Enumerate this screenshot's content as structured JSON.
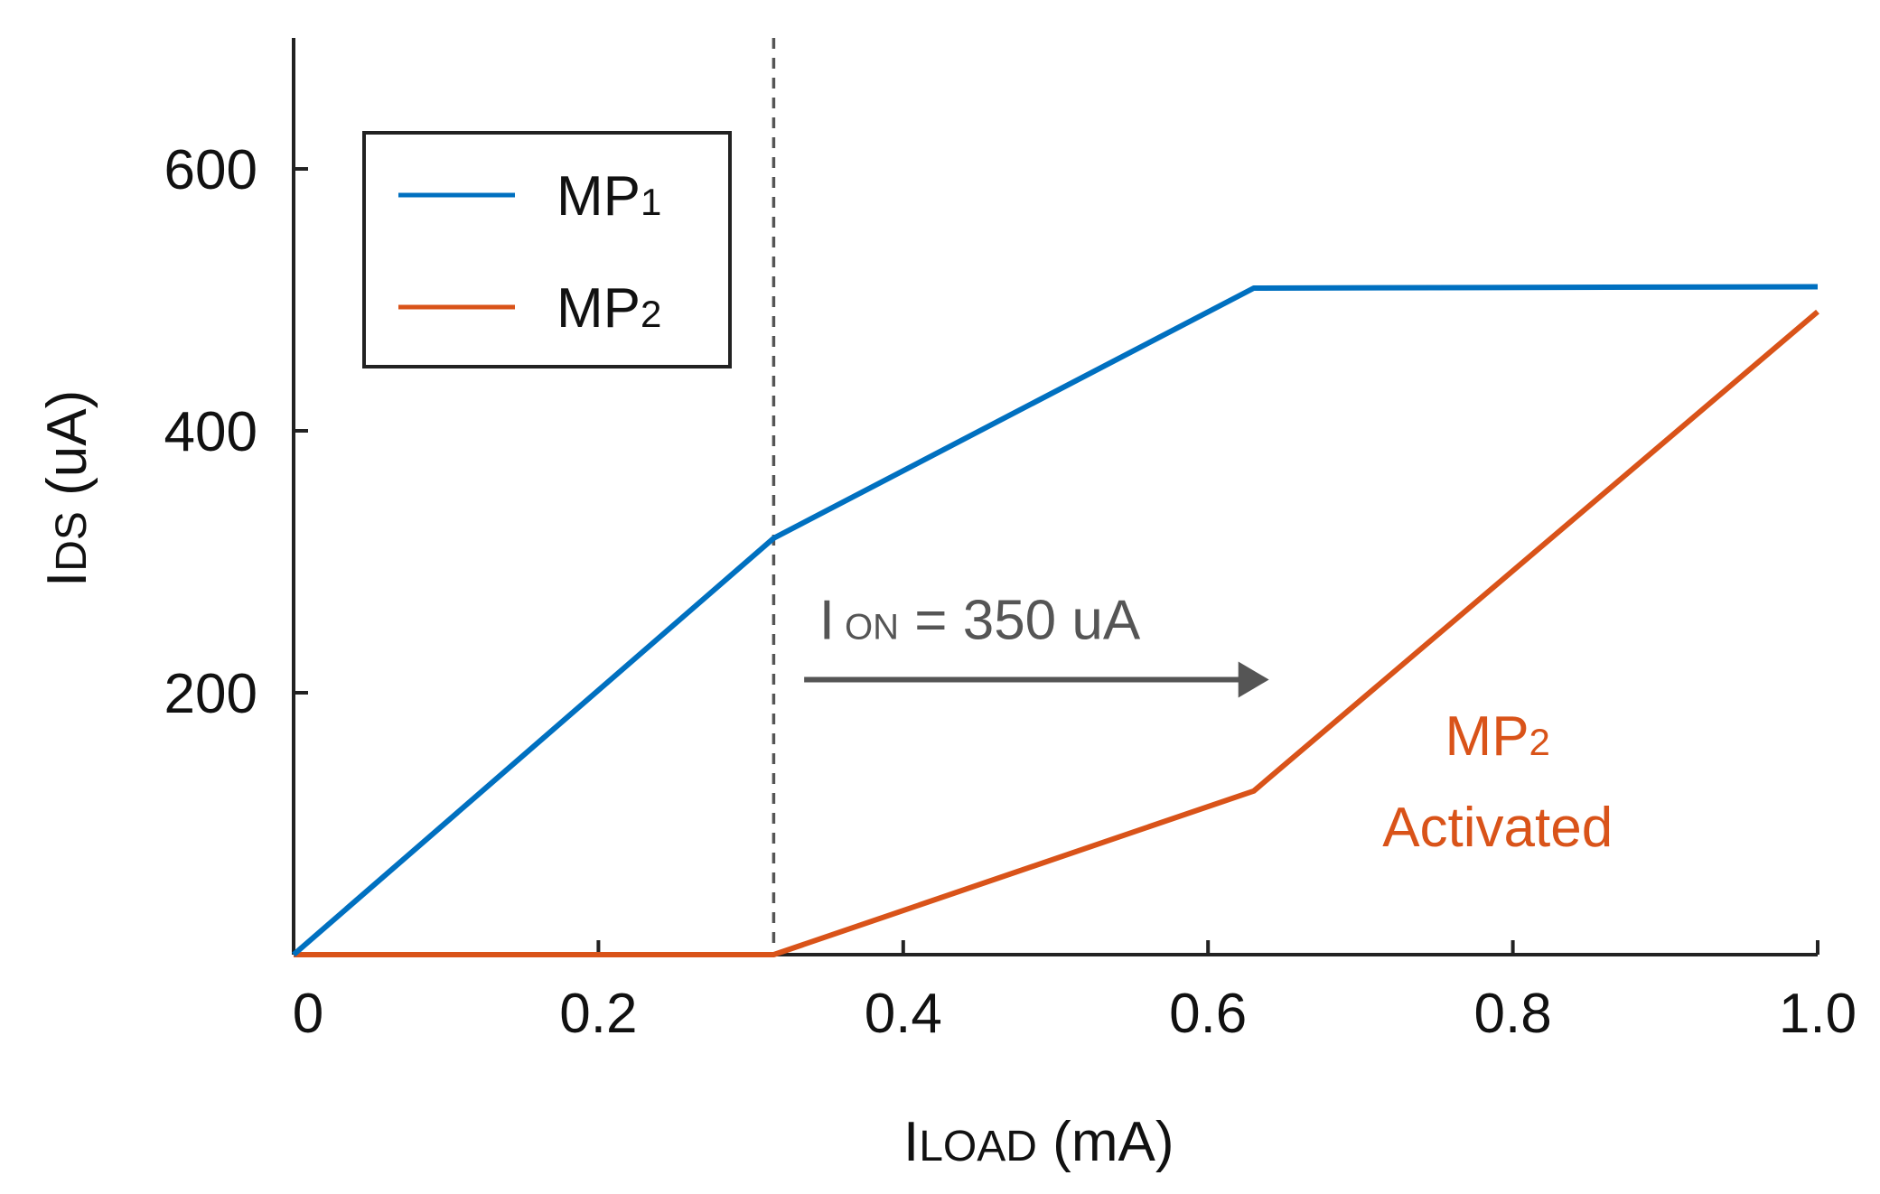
{
  "chart_data": {
    "type": "line",
    "title": "",
    "xlabel": {
      "main": "I",
      "sub": "LOAD",
      "unit": " (mA)"
    },
    "ylabel": {
      "main": "I",
      "sub": "DS",
      "unit": " (uA)"
    },
    "xlim": [
      0,
      1.0
    ],
    "ylim": [
      0,
      700
    ],
    "xticks": [
      0,
      0.2,
      0.4,
      0.6,
      0.8,
      1.0
    ],
    "xtick_labels": [
      "0",
      "0.2",
      "0.4",
      "0.6",
      "0.8",
      "1.0"
    ],
    "yticks": [
      200,
      400,
      600
    ],
    "ytick_labels": [
      "200",
      "400",
      "600"
    ],
    "grid": false,
    "legend_position": "top-left",
    "series": [
      {
        "name": "MP1",
        "name_main": "MP",
        "name_sub": "1",
        "color": "#0070C0",
        "x": [
          0,
          0.315,
          0.63,
          1.0
        ],
        "y": [
          0,
          318,
          509,
          510
        ]
      },
      {
        "name": "MP2",
        "name_main": "MP",
        "name_sub": "2",
        "color": "#D95319",
        "x": [
          0,
          0.315,
          0.63,
          1.0
        ],
        "y": [
          0,
          0,
          125,
          491
        ]
      }
    ],
    "threshold_line": {
      "x": 0.315,
      "style": "dashed",
      "color": "#555555"
    },
    "annotations": [
      {
        "id": "ion",
        "text_main": "I",
        "text_sub": " ON",
        "text_rest": " = 350 uA",
        "color": "#555555",
        "x": 0.33,
        "y": 255
      },
      {
        "id": "mp2-activated",
        "line1_main": "MP",
        "line1_sub": "2",
        "line2": "Activated",
        "color": "#D95319",
        "x": 0.79,
        "y": 140
      }
    ],
    "arrow": {
      "x_from": 0.335,
      "x_to": 0.64,
      "y": 210,
      "color": "#555555"
    }
  }
}
